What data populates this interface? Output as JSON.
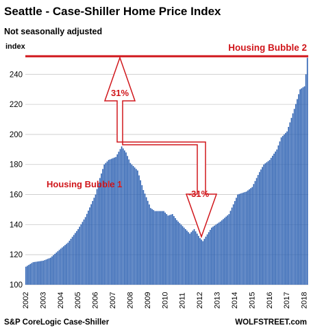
{
  "chart_data": {
    "type": "bar",
    "title": "Seattle - Case-Shiller Home Price Index",
    "subtitle": "Not seasonally adjusted",
    "ylabel": "index",
    "ylim": [
      100,
      252
    ],
    "yticks": [
      100,
      120,
      140,
      160,
      180,
      200,
      220,
      240
    ],
    "xticks": [
      "2002",
      "2003",
      "2004",
      "2005",
      "2006",
      "2007",
      "2008",
      "2009",
      "2010",
      "2011",
      "2012",
      "2013",
      "2014",
      "2015",
      "2016",
      "2017",
      "2018"
    ],
    "x_start": "2002-01",
    "x_end": "2018-03",
    "bar_color": "#2f63b3",
    "anchors": [
      [
        "2002-01",
        112
      ],
      [
        "2002-06",
        115
      ],
      [
        "2003-01",
        116
      ],
      [
        "2003-06",
        118
      ],
      [
        "2004-01",
        124
      ],
      [
        "2004-06",
        128
      ],
      [
        "2005-01",
        137
      ],
      [
        "2005-06",
        145
      ],
      [
        "2006-01",
        160
      ],
      [
        "2006-04",
        171
      ],
      [
        "2006-07",
        180
      ],
      [
        "2006-10",
        183
      ],
      [
        "2007-03",
        185
      ],
      [
        "2007-07",
        192
      ],
      [
        "2007-10",
        188
      ],
      [
        "2008-01",
        181
      ],
      [
        "2008-06",
        176
      ],
      [
        "2008-10",
        163
      ],
      [
        "2009-03",
        151
      ],
      [
        "2009-06",
        149
      ],
      [
        "2009-12",
        149
      ],
      [
        "2010-03",
        146
      ],
      [
        "2010-06",
        147
      ],
      [
        "2010-09",
        143
      ],
      [
        "2011-03",
        137
      ],
      [
        "2011-06",
        134
      ],
      [
        "2011-09",
        137
      ],
      [
        "2012-01",
        131
      ],
      [
        "2012-03",
        129
      ],
      [
        "2012-09",
        138
      ],
      [
        "2013-03",
        142
      ],
      [
        "2013-09",
        147
      ],
      [
        "2014-03",
        160
      ],
      [
        "2014-09",
        162
      ],
      [
        "2015-01",
        165
      ],
      [
        "2015-06",
        175
      ],
      [
        "2015-09",
        180
      ],
      [
        "2016-01",
        183
      ],
      [
        "2016-06",
        190
      ],
      [
        "2016-09",
        198
      ],
      [
        "2017-01",
        202
      ],
      [
        "2017-06",
        217
      ],
      [
        "2017-10",
        230
      ],
      [
        "2018-01",
        232
      ],
      [
        "2018-02",
        240
      ],
      [
        "2018-03",
        251
      ]
    ],
    "reference_line": {
      "value": 252,
      "label": "Housing Bubble 2",
      "color": "#d0161b"
    },
    "annotations": [
      {
        "text": "Housing Bubble 1",
        "color": "#d0161b"
      },
      {
        "text": "31%",
        "color": "#d0161b"
      },
      {
        "text": "-31%",
        "color": "#d0161b"
      }
    ],
    "source": "S&P CoreLogic Case-Shiller",
    "brand": "WOLFSTREET.com"
  }
}
